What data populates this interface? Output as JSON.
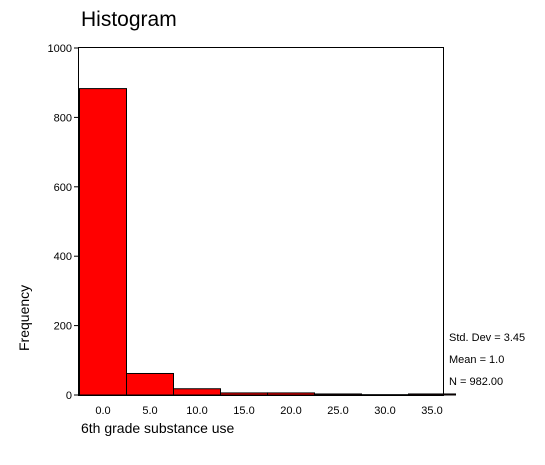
{
  "chart_data": {
    "type": "bar",
    "title": "Histogram",
    "xlabel": "6th grade substance use",
    "ylabel": "Frequency",
    "ylim": [
      0,
      1000
    ],
    "yticks": [
      "0",
      "200",
      "400",
      "600",
      "800",
      "1000"
    ],
    "xticks": [
      "0.0",
      "5.0",
      "10.0",
      "15.0",
      "20.0",
      "25.0",
      "30.0",
      "35.0"
    ],
    "bin_width": 5.0,
    "bins": [
      {
        "center": 0.0,
        "value": 883
      },
      {
        "center": 5.0,
        "value": 62
      },
      {
        "center": 10.0,
        "value": 18
      },
      {
        "center": 15.0,
        "value": 6
      },
      {
        "center": 20.0,
        "value": 6
      },
      {
        "center": 25.0,
        "value": 3
      },
      {
        "center": 30.0,
        "value": 1
      },
      {
        "center": 35.0,
        "value": 3
      }
    ],
    "stats": [
      "Std. Dev = 3.45",
      "Mean = 1.0",
      "N = 982.00"
    ],
    "bar_color": "#ff0000",
    "bar_edge_color": "#000000",
    "grid": false,
    "legend": "none"
  }
}
